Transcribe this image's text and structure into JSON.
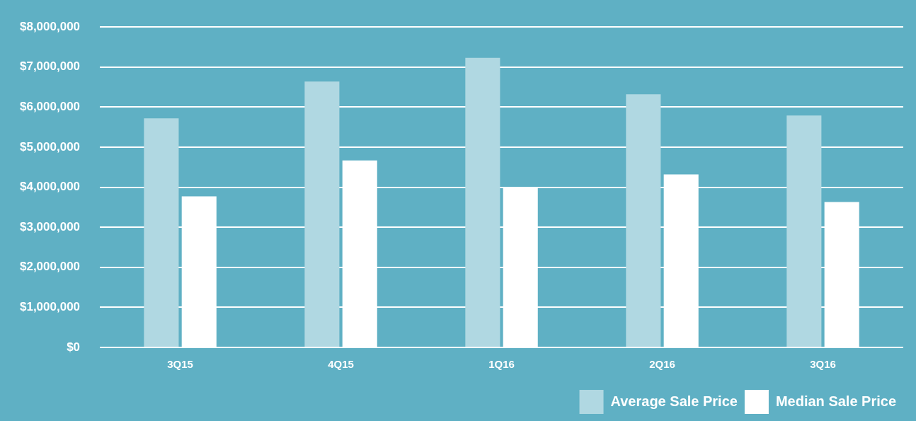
{
  "chart_data": {
    "type": "bar",
    "categories": [
      "3Q15",
      "4Q15",
      "1Q16",
      "2Q16",
      "3Q16"
    ],
    "series": [
      {
        "name": "Average Sale Price",
        "color": "#b0d8e2",
        "values": [
          5720000,
          6640000,
          7230000,
          6320000,
          5790000
        ]
      },
      {
        "name": "Median Sale Price",
        "color": "#ffffff",
        "values": [
          3770000,
          4670000,
          4010000,
          4320000,
          3630000
        ]
      }
    ],
    "ylim": [
      0,
      8000000
    ],
    "yticks": [
      {
        "value": 0,
        "label": "$0"
      },
      {
        "value": 1000000,
        "label": "$1,000,000"
      },
      {
        "value": 2000000,
        "label": "$2,000,000"
      },
      {
        "value": 3000000,
        "label": "$3,000,000"
      },
      {
        "value": 4000000,
        "label": "$4,000,000"
      },
      {
        "value": 5000000,
        "label": "$5,000,000"
      },
      {
        "value": 6000000,
        "label": "$6,000,000"
      },
      {
        "value": 7000000,
        "label": "$7,000,000"
      },
      {
        "value": 8000000,
        "label": "$8,000,000"
      }
    ],
    "grid": "y",
    "legend": "bottom right"
  }
}
